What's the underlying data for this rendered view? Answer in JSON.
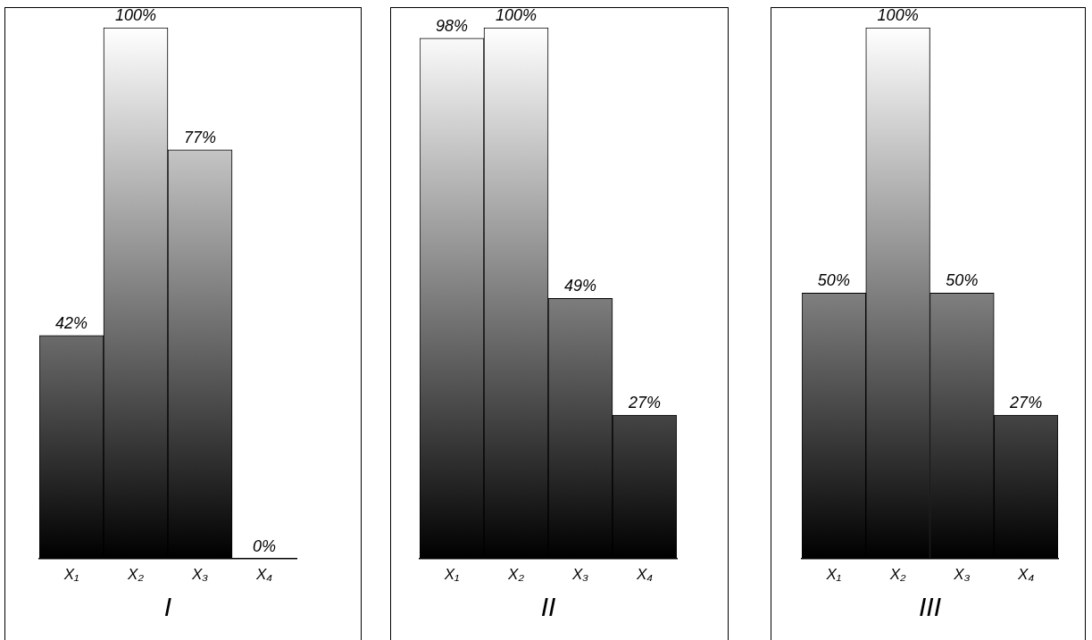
{
  "chart_data": [
    {
      "type": "bar",
      "xlabel": "I",
      "categories": [
        "X₁",
        "X₂",
        "X₃",
        "X₄"
      ],
      "values": [
        42,
        100,
        77,
        0
      ],
      "value_labels": [
        "42%",
        "100%",
        "77%",
        "0%"
      ],
      "color": "#000000"
    },
    {
      "type": "bar",
      "xlabel": "II",
      "categories": [
        "X₁",
        "X₂",
        "X₃",
        "X₄"
      ],
      "values": [
        98,
        100,
        49,
        27
      ],
      "value_labels": [
        "98%",
        "100%",
        "49%",
        "27%"
      ],
      "color": "#000000"
    },
    {
      "type": "bar",
      "xlabel": "III",
      "categories": [
        "X₁",
        "X₂",
        "X₃",
        "X₄"
      ],
      "values": [
        50,
        100,
        50,
        27
      ],
      "value_labels": [
        "50%",
        "100%",
        "50%",
        "27%"
      ],
      "color": "#000000"
    }
  ]
}
